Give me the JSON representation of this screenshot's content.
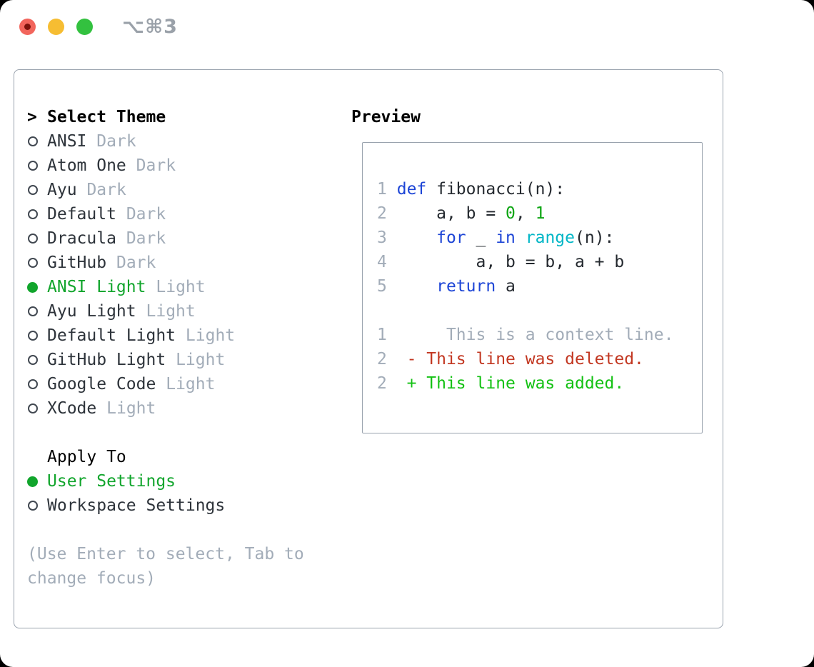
{
  "window": {
    "shortcut_label": "⌥⌘3"
  },
  "theme_panel": {
    "prompt": ">",
    "title": "Select Theme",
    "themes": [
      {
        "name": "ANSI",
        "variant": "Dark",
        "selected": false
      },
      {
        "name": "Atom One",
        "variant": "Dark",
        "selected": false
      },
      {
        "name": "Ayu",
        "variant": "Dark",
        "selected": false
      },
      {
        "name": "Default",
        "variant": "Dark",
        "selected": false
      },
      {
        "name": "Dracula",
        "variant": "Dark",
        "selected": false
      },
      {
        "name": "GitHub",
        "variant": "Dark",
        "selected": false
      },
      {
        "name": "ANSI Light",
        "variant": "Light",
        "selected": true
      },
      {
        "name": "Ayu Light",
        "variant": "Light",
        "selected": false
      },
      {
        "name": "Default Light",
        "variant": "Light",
        "selected": false
      },
      {
        "name": "GitHub Light",
        "variant": "Light",
        "selected": false
      },
      {
        "name": "Google Code",
        "variant": "Light",
        "selected": false
      },
      {
        "name": "XCode",
        "variant": "Light",
        "selected": false
      }
    ],
    "apply_to": {
      "title": "Apply To",
      "options": [
        {
          "label": "User Settings",
          "selected": true
        },
        {
          "label": "Workspace Settings",
          "selected": false
        }
      ]
    },
    "hint": "(Use Enter to select, Tab to change focus)"
  },
  "preview": {
    "title": "Preview",
    "lines": [
      {
        "num": "1",
        "tokens": [
          {
            "t": "def",
            "c": "kw"
          },
          {
            "t": " fibonacci(n):",
            "c": "pl"
          }
        ]
      },
      {
        "num": "2",
        "tokens": [
          {
            "t": "    a, b = ",
            "c": "pl"
          },
          {
            "t": "0",
            "c": "num"
          },
          {
            "t": ", ",
            "c": "pl"
          },
          {
            "t": "1",
            "c": "num"
          }
        ]
      },
      {
        "num": "3",
        "tokens": [
          {
            "t": "    ",
            "c": "pl"
          },
          {
            "t": "for",
            "c": "kw"
          },
          {
            "t": " _ ",
            "c": "pl"
          },
          {
            "t": "in",
            "c": "kw"
          },
          {
            "t": " ",
            "c": "pl"
          },
          {
            "t": "range",
            "c": "fn"
          },
          {
            "t": "(n):",
            "c": "pl"
          }
        ]
      },
      {
        "num": "4",
        "tokens": [
          {
            "t": "        a, b = b, a + b",
            "c": "pl"
          }
        ]
      },
      {
        "num": "5",
        "tokens": [
          {
            "t": "    ",
            "c": "pl"
          },
          {
            "t": "return",
            "c": "kw"
          },
          {
            "t": " a",
            "c": "pl"
          }
        ]
      },
      {
        "num": "",
        "tokens": []
      },
      {
        "num": "1",
        "tokens": [
          {
            "t": "     This is a context line.",
            "c": "ctx"
          }
        ]
      },
      {
        "num": "2",
        "tokens": [
          {
            "t": " - This line was deleted.",
            "c": "del"
          }
        ]
      },
      {
        "num": "2",
        "tokens": [
          {
            "t": " + This line was added.",
            "c": "add"
          }
        ]
      }
    ]
  },
  "colors": {
    "accent_green": "#11a52c",
    "added_green": "#13c113",
    "deleted_red": "#c23721",
    "keyword_blue": "#1d45d6",
    "function_cyan": "#00b6c6",
    "number_green": "#0ca512",
    "muted_gray": "#a2acb8",
    "border_gray": "#9aa3ae",
    "traffic_red": "#f2655c",
    "traffic_yellow": "#f6bd32",
    "traffic_green": "#33c13f"
  }
}
